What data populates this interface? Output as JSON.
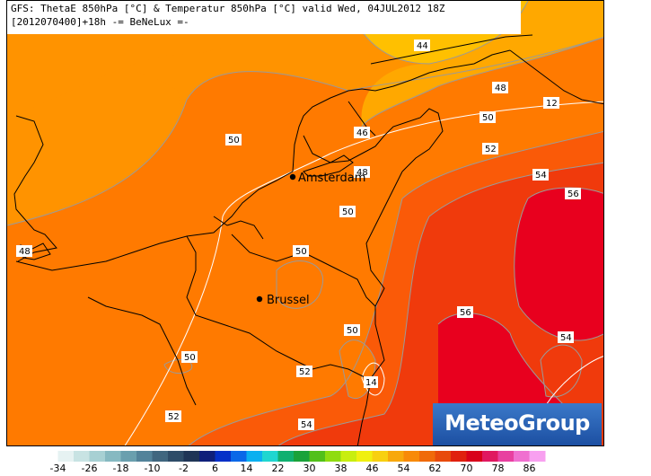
{
  "header": {
    "line1": "GFS: ThetaE 850hPa [°C] & Temperatur 850hPa [°C] valid Wed, 04JUL2012 18Z",
    "line2": "[2012070400]+18h -= BeNeLux =-"
  },
  "cities": [
    {
      "name": "Amsterdam",
      "icon": "city-dot-icon"
    },
    {
      "name": "Brussel",
      "icon": "city-dot-icon"
    }
  ],
  "contour_labels": [
    "44",
    "48",
    "50",
    "48",
    "46",
    "50",
    "52",
    "54",
    "56",
    "48",
    "50",
    "50",
    "50",
    "56",
    "54",
    "50",
    "52",
    "52",
    "54",
    "14",
    "12"
  ],
  "logo": {
    "text": "MeteoGroup"
  },
  "scale": {
    "ticks": [
      "-34",
      "-26",
      "-18",
      "-10",
      "-2",
      "6",
      "14",
      "22",
      "30",
      "38",
      "46",
      "54",
      "62",
      "70",
      "78",
      "86"
    ],
    "colors": [
      "#ffffff",
      "#e6f2f2",
      "#c8e3e3",
      "#a7d0d3",
      "#86b9c1",
      "#6a9fae",
      "#53839a",
      "#40667f",
      "#2e4c68",
      "#1f3556",
      "#0f1f7a",
      "#0530c8",
      "#0a68e8",
      "#0bb0f0",
      "#1fd6d0",
      "#10b070",
      "#1aa23a",
      "#52c01a",
      "#8fdc10",
      "#c8ee10",
      "#f0f010",
      "#f8d010",
      "#f8a80c",
      "#f88a08",
      "#f06a0a",
      "#e84a0c",
      "#e0200e",
      "#d8001a",
      "#e01860",
      "#e840a0",
      "#f070d0",
      "#f8a0f0"
    ]
  },
  "colors": {
    "c44": "#ffc000",
    "c46": "#ffa800",
    "c48": "#ff9300",
    "c50": "#ff7a00",
    "c52": "#fa5a08",
    "c54": "#f03a0c",
    "c56": "#e8001e",
    "coast": "#000000"
  }
}
